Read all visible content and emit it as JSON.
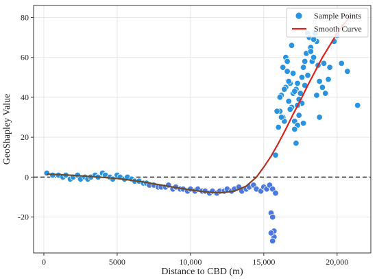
{
  "chart_data": {
    "type": "scatter",
    "title": "",
    "xlabel": "Distance to CBD (m)",
    "ylabel": "GeoShapley Value",
    "xlim": [
      -700,
      22300
    ],
    "ylim": [
      -38,
      86
    ],
    "xticks": [
      0,
      5000,
      10000,
      15000,
      20000
    ],
    "xtick_labels": [
      "0",
      "5000",
      "10,000",
      "15,000",
      "20,000"
    ],
    "yticks": [
      -20,
      0,
      20,
      40,
      60,
      80
    ],
    "ytick_labels": [
      "-20",
      "0",
      "20",
      "40",
      "60",
      "80"
    ],
    "grid": true,
    "reference_line": {
      "y": 0,
      "style": "dashed"
    },
    "legend": {
      "placement": "top-right",
      "entries": [
        "Sample Points",
        "Smooth Curve"
      ]
    },
    "colors": {
      "points": "#2a93e0",
      "points_edge": "#ffffff",
      "curve": "#e0201b",
      "curve_low": "#6b4a2a",
      "zero_line": "#333333"
    },
    "series": [
      {
        "name": "Sample Points",
        "kind": "scatter",
        "x": [
          200,
          600,
          1000,
          1300,
          1500,
          1800,
          2000,
          2300,
          2500,
          2800,
          3000,
          3200,
          3500,
          3700,
          4000,
          4200,
          4500,
          4700,
          5000,
          5200,
          5500,
          5700,
          6000,
          6200,
          6500,
          6800,
          7000,
          7200,
          7500,
          7800,
          8000,
          8300,
          8500,
          8800,
          9000,
          9300,
          9500,
          9800,
          10000,
          10300,
          10500,
          10800,
          11000,
          11300,
          11500,
          11800,
          12000,
          12300,
          12500,
          12800,
          13000,
          13300,
          13500,
          13800,
          14000,
          14300,
          14500,
          14800,
          15000,
          15200,
          15400,
          15600,
          15800,
          15500,
          15600,
          15700,
          15700,
          15600,
          15500,
          15800,
          16000,
          16100,
          16200,
          16300,
          16400,
          16500,
          16600,
          16700,
          16800,
          16900,
          17000,
          17100,
          17200,
          17300,
          17400,
          17500,
          17600,
          17700,
          17800,
          17900,
          18000,
          18100,
          18200,
          18300,
          18400,
          18500,
          18600,
          18700,
          18800,
          19000,
          19200,
          19500,
          19800,
          20000,
          20300,
          20700,
          21400,
          16100,
          16300,
          16500,
          16700,
          17000,
          17200,
          17400,
          17600,
          17800,
          18000,
          18200,
          18400,
          18600,
          18800,
          19100,
          19400,
          16800,
          17100,
          17300,
          17500,
          17700,
          15900,
          16200,
          16400,
          16600,
          16900,
          17100,
          17300
        ],
        "y": [
          2,
          1,
          1,
          0,
          1,
          -1,
          0,
          1,
          -1,
          0,
          -1,
          0,
          1,
          0,
          2,
          1,
          0,
          -1,
          1,
          0,
          -1,
          0,
          -1,
          -2,
          -2,
          -3,
          -3,
          -4,
          -4,
          -5,
          -5,
          -5,
          -4,
          -6,
          -5,
          -6,
          -6,
          -7,
          -6,
          -7,
          -6,
          -7,
          -7,
          -8,
          -7,
          -8,
          -7,
          -7,
          -6,
          -7,
          -6,
          -5,
          -7,
          -6,
          -5,
          -4,
          -6,
          -7,
          -5,
          -6,
          -4,
          -6,
          -8,
          -18,
          -20,
          -27,
          -30,
          -32,
          -28,
          11,
          25,
          33,
          41,
          30,
          28,
          45,
          53,
          38,
          47,
          35,
          42,
          28,
          17,
          26,
          31,
          38,
          50,
          55,
          58,
          62,
          72,
          70,
          65,
          58,
          60,
          72,
          68,
          56,
          48,
          45,
          42,
          55,
          68,
          71,
          57,
          53,
          36,
          40,
          55,
          60,
          48,
          52,
          44,
          39,
          37,
          46,
          51,
          63,
          69,
          41,
          30,
          57,
          49,
          34,
          43,
          36,
          42,
          27,
          33,
          30,
          44,
          58,
          66,
          24,
          47
        ]
      },
      {
        "name": "Smooth Curve",
        "kind": "line",
        "x": [
          200,
          1000,
          2000,
          3000,
          4000,
          5000,
          6000,
          7000,
          8000,
          9000,
          10000,
          11000,
          12000,
          13000,
          13800,
          14500,
          15000,
          15500,
          16000,
          16500,
          17000,
          17500,
          18000,
          18500,
          19000,
          19500,
          20000,
          20500,
          21000
        ],
        "y": [
          1.5,
          1.3,
          0.9,
          0.4,
          -0.1,
          -0.7,
          -1.6,
          -2.7,
          -4.0,
          -5.2,
          -6.4,
          -7.4,
          -7.9,
          -7.0,
          -4.5,
          0.0,
          5.0,
          10.5,
          17.0,
          24.0,
          31.5,
          38.5,
          46.0,
          53.0,
          60.0,
          66.0,
          72.0,
          77.0,
          81.5
        ]
      }
    ]
  }
}
